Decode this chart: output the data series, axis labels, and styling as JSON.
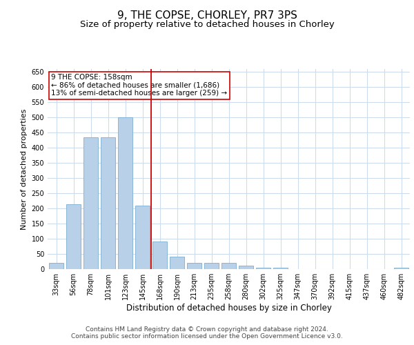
{
  "title": "9, THE COPSE, CHORLEY, PR7 3PS",
  "subtitle": "Size of property relative to detached houses in Chorley",
  "xlabel": "Distribution of detached houses by size in Chorley",
  "ylabel": "Number of detached properties",
  "categories": [
    "33sqm",
    "56sqm",
    "78sqm",
    "101sqm",
    "123sqm",
    "145sqm",
    "168sqm",
    "190sqm",
    "213sqm",
    "235sqm",
    "258sqm",
    "280sqm",
    "302sqm",
    "325sqm",
    "347sqm",
    "370sqm",
    "392sqm",
    "415sqm",
    "437sqm",
    "460sqm",
    "482sqm"
  ],
  "values": [
    20,
    215,
    435,
    435,
    500,
    210,
    90,
    40,
    20,
    20,
    20,
    12,
    5,
    5,
    0,
    0,
    0,
    0,
    0,
    0,
    5
  ],
  "bar_color": "#b8d0e8",
  "bar_edge_color": "#7aaed0",
  "vline_color": "#cc0000",
  "annotation_text": "9 THE COPSE: 158sqm\n← 86% of detached houses are smaller (1,686)\n13% of semi-detached houses are larger (259) →",
  "annotation_box_color": "#ffffff",
  "annotation_box_edge": "#cc0000",
  "ylim": [
    0,
    660
  ],
  "yticks": [
    0,
    50,
    100,
    150,
    200,
    250,
    300,
    350,
    400,
    450,
    500,
    550,
    600,
    650
  ],
  "background_color": "#ffffff",
  "grid_color": "#ccdcec",
  "footer": "Contains HM Land Registry data © Crown copyright and database right 2024.\nContains public sector information licensed under the Open Government Licence v3.0.",
  "title_fontsize": 11,
  "subtitle_fontsize": 9.5,
  "xlabel_fontsize": 8.5,
  "ylabel_fontsize": 8,
  "tick_fontsize": 7,
  "footer_fontsize": 6.5,
  "ann_fontsize": 7.5
}
